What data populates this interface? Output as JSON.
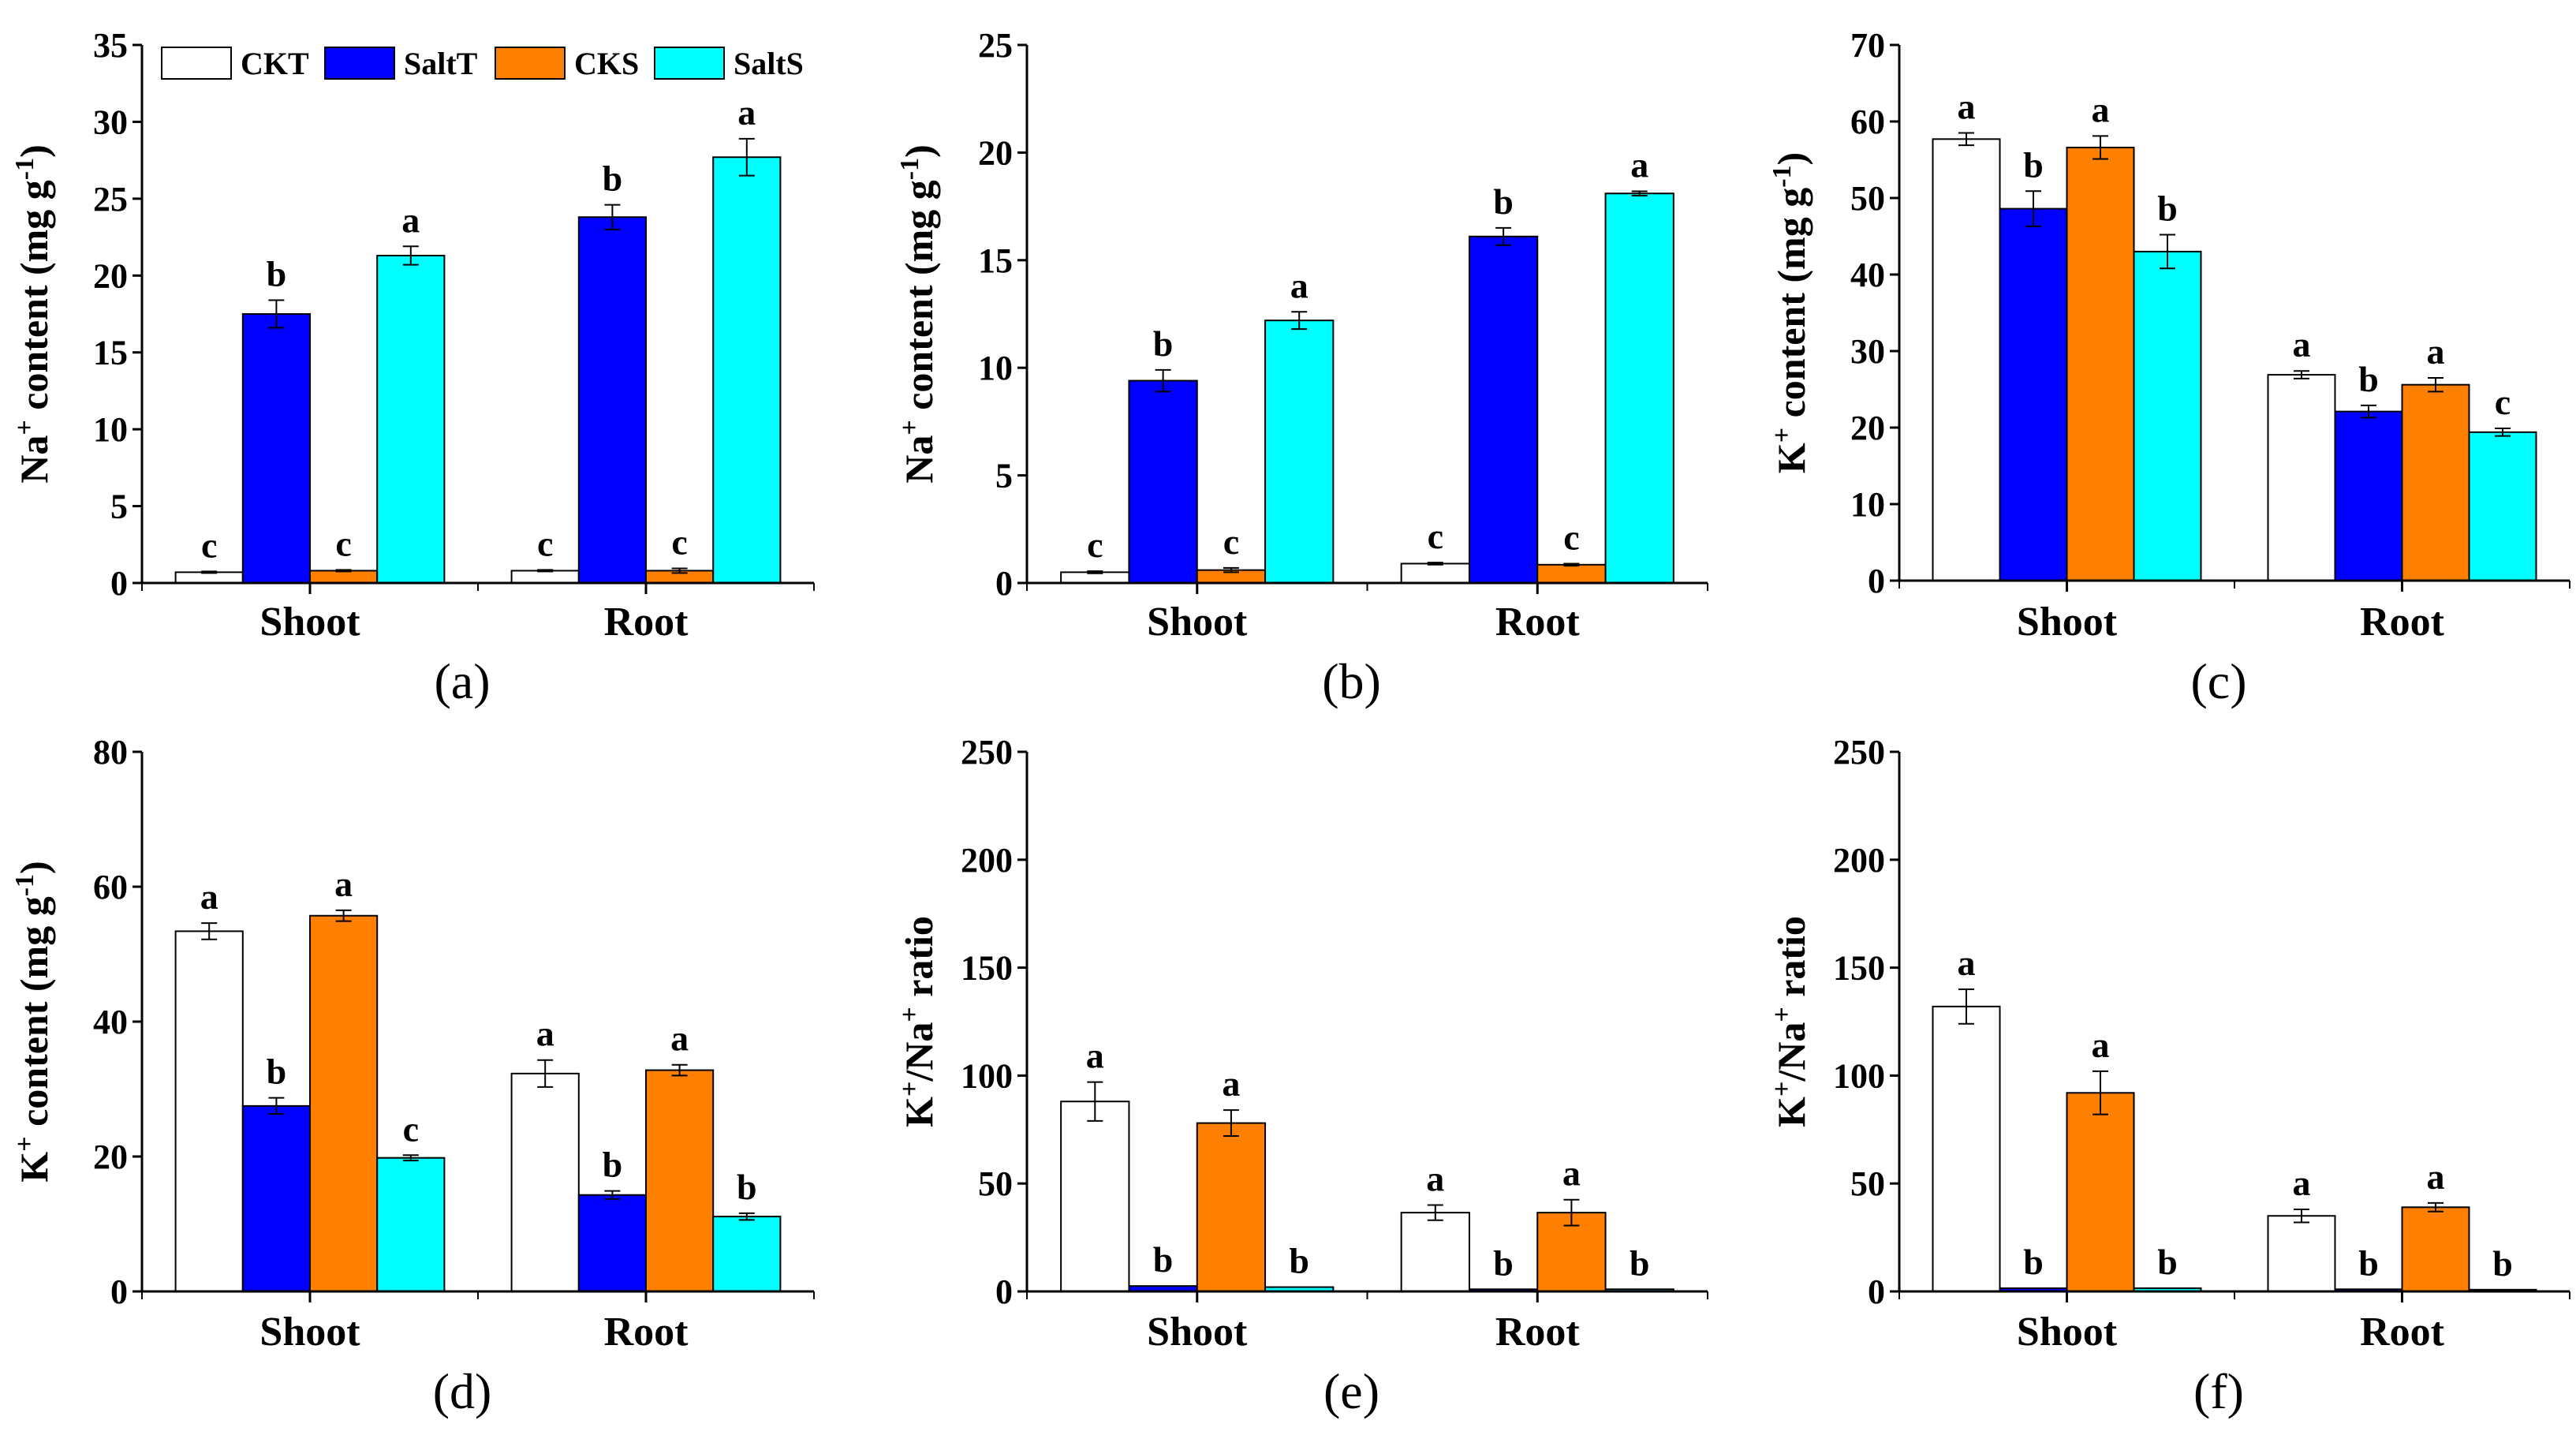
{
  "chart_data": [
    {
      "type": "bar",
      "panel_label": "(a)",
      "ylabel": [
        [
          "Na",
          0
        ],
        [
          "+",
          1
        ],
        [
          " content (mg g",
          0
        ],
        [
          "-1",
          1
        ],
        [
          ")",
          0
        ]
      ],
      "ylim": [
        0,
        35
      ],
      "yticks": [
        0,
        5,
        10,
        15,
        20,
        25,
        30,
        35
      ],
      "categories": [
        "Shoot",
        "Root"
      ],
      "series": [
        {
          "name": "CKT",
          "values": [
            0.7,
            0.8
          ],
          "errors": [
            0.05,
            0.05
          ],
          "letters": [
            "c",
            "c"
          ]
        },
        {
          "name": "SaltT",
          "values": [
            17.5,
            23.8
          ],
          "errors": [
            0.9,
            0.8
          ],
          "letters": [
            "b",
            "b"
          ]
        },
        {
          "name": "CKS",
          "values": [
            0.8,
            0.8
          ],
          "errors": [
            0.05,
            0.15
          ],
          "letters": [
            "c",
            "c"
          ]
        },
        {
          "name": "SaltS",
          "values": [
            21.3,
            27.7
          ],
          "errors": [
            0.6,
            1.2
          ],
          "letters": [
            "a",
            "a"
          ]
        }
      ],
      "legend": "top"
    },
    {
      "type": "bar",
      "panel_label": "(b)",
      "ylabel": [
        [
          "Na",
          0
        ],
        [
          "+",
          1
        ],
        [
          " content (mg g",
          0
        ],
        [
          "-1",
          1
        ],
        [
          ")",
          0
        ]
      ],
      "ylim": [
        0,
        25
      ],
      "yticks": [
        0,
        5,
        10,
        15,
        20,
        25
      ],
      "categories": [
        "Shoot",
        "Root"
      ],
      "series": [
        {
          "name": "CKT",
          "values": [
            0.5,
            0.9
          ],
          "errors": [
            0.05,
            0.05
          ],
          "letters": [
            "c",
            "c"
          ]
        },
        {
          "name": "SaltT",
          "values": [
            9.4,
            16.1
          ],
          "errors": [
            0.5,
            0.4
          ],
          "letters": [
            "b",
            "b"
          ]
        },
        {
          "name": "CKS",
          "values": [
            0.6,
            0.85
          ],
          "errors": [
            0.1,
            0.05
          ],
          "letters": [
            "c",
            "c"
          ]
        },
        {
          "name": "SaltS",
          "values": [
            12.2,
            18.1
          ],
          "errors": [
            0.4,
            0.1
          ],
          "letters": [
            "a",
            "a"
          ]
        }
      ]
    },
    {
      "type": "bar",
      "panel_label": "(c)",
      "ylabel": [
        [
          "K",
          0
        ],
        [
          "+",
          1
        ],
        [
          " content (mg g",
          0
        ],
        [
          "-1",
          1
        ],
        [
          ")",
          0
        ]
      ],
      "ylim": [
        0,
        70
      ],
      "yticks": [
        0,
        10,
        20,
        30,
        40,
        50,
        60,
        70
      ],
      "categories": [
        "Shoot",
        "Root"
      ],
      "series": [
        {
          "name": "CKT",
          "values": [
            57.7,
            26.9
          ],
          "errors": [
            0.8,
            0.5
          ],
          "letters": [
            "a",
            "a"
          ]
        },
        {
          "name": "SaltT",
          "values": [
            48.6,
            22.1
          ],
          "errors": [
            2.3,
            0.8
          ],
          "letters": [
            "b",
            "b"
          ]
        },
        {
          "name": "CKS",
          "values": [
            56.6,
            25.6
          ],
          "errors": [
            1.5,
            0.9
          ],
          "letters": [
            "a",
            "a"
          ]
        },
        {
          "name": "SaltS",
          "values": [
            43.0,
            19.4
          ],
          "errors": [
            2.2,
            0.5
          ],
          "letters": [
            "b",
            "c"
          ]
        }
      ]
    },
    {
      "type": "bar",
      "panel_label": "(d)",
      "ylabel": [
        [
          "K",
          0
        ],
        [
          "+",
          1
        ],
        [
          " content (mg g",
          0
        ],
        [
          "-1",
          1
        ],
        [
          ")",
          0
        ]
      ],
      "ylim": [
        0,
        80
      ],
      "yticks": [
        0,
        20,
        40,
        60,
        80
      ],
      "categories": [
        "Shoot",
        "Root"
      ],
      "series": [
        {
          "name": "CKT",
          "values": [
            53.4,
            32.3
          ],
          "errors": [
            1.2,
            2.0
          ],
          "letters": [
            "a",
            "a"
          ]
        },
        {
          "name": "SaltT",
          "values": [
            27.5,
            14.3
          ],
          "errors": [
            1.2,
            0.6
          ],
          "letters": [
            "b",
            "b"
          ]
        },
        {
          "name": "CKS",
          "values": [
            55.7,
            32.8
          ],
          "errors": [
            0.8,
            0.8
          ],
          "letters": [
            "a",
            "a"
          ]
        },
        {
          "name": "SaltS",
          "values": [
            19.8,
            11.1
          ],
          "errors": [
            0.4,
            0.5
          ],
          "letters": [
            "c",
            "b"
          ]
        }
      ]
    },
    {
      "type": "bar",
      "panel_label": "(e)",
      "ylabel": [
        [
          "K",
          0
        ],
        [
          "+",
          1
        ],
        [
          "/Na",
          0
        ],
        [
          "+",
          1
        ],
        [
          " ratio",
          0
        ]
      ],
      "ylim": [
        0,
        250
      ],
      "yticks": [
        0,
        50,
        100,
        150,
        200,
        250
      ],
      "categories": [
        "Shoot",
        "Root"
      ],
      "series": [
        {
          "name": "CKT",
          "values": [
            88,
            36.5
          ],
          "errors": [
            9,
            3.5
          ],
          "letters": [
            "a",
            "a"
          ]
        },
        {
          "name": "SaltT",
          "values": [
            2.5,
            1
          ],
          "errors": [
            0,
            0
          ],
          "letters": [
            "b",
            "b"
          ]
        },
        {
          "name": "CKS",
          "values": [
            78,
            36.5
          ],
          "errors": [
            6,
            6
          ],
          "letters": [
            "a",
            "a"
          ]
        },
        {
          "name": "SaltS",
          "values": [
            2,
            1
          ],
          "errors": [
            0,
            0
          ],
          "letters": [
            "b",
            "b"
          ]
        }
      ]
    },
    {
      "type": "bar",
      "panel_label": "(f)",
      "ylabel": [
        [
          "K",
          0
        ],
        [
          "+",
          1
        ],
        [
          "/Na",
          0
        ],
        [
          "+",
          1
        ],
        [
          " ratio",
          0
        ]
      ],
      "ylim": [
        0,
        250
      ],
      "yticks": [
        0,
        50,
        100,
        150,
        200,
        250
      ],
      "categories": [
        "Shoot",
        "Root"
      ],
      "series": [
        {
          "name": "CKT",
          "values": [
            132,
            35
          ],
          "errors": [
            8,
            3
          ],
          "letters": [
            "a",
            "a"
          ]
        },
        {
          "name": "SaltT",
          "values": [
            1.5,
            1
          ],
          "errors": [
            0,
            0
          ],
          "letters": [
            "b",
            "b"
          ]
        },
        {
          "name": "CKS",
          "values": [
            92,
            39
          ],
          "errors": [
            10,
            2
          ],
          "letters": [
            "a",
            "a"
          ]
        },
        {
          "name": "SaltS",
          "values": [
            1.5,
            0.8
          ],
          "errors": [
            0,
            0
          ],
          "letters": [
            "b",
            "b"
          ]
        }
      ]
    }
  ],
  "colors": {
    "CKT": "#ffffff",
    "SaltT": "#0000ff",
    "CKS": "#ff8000",
    "SaltS": "#00ffff"
  }
}
